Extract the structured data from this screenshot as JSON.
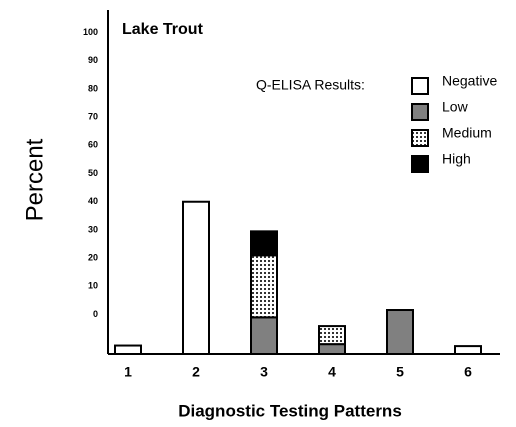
{
  "chart_data": {
    "type": "stacked_bar",
    "title": "Lake Trout",
    "ylabel": "Percent",
    "xlabel": "Diagnostic Testing Patterns",
    "legend_title": "Q-ELISA Results:",
    "categories": [
      "1",
      "2",
      "3",
      "4",
      "5",
      "6"
    ],
    "series": [
      {
        "name": "Negative",
        "color": "#ffffff",
        "values": [
          3,
          54,
          null,
          null,
          null,
          2.8
        ]
      },
      {
        "name": "Low",
        "color": "#808080",
        "values": [
          null,
          null,
          13,
          3.5,
          15.6,
          null
        ]
      },
      {
        "name": "Medium",
        "color": "dots",
        "values": [
          null,
          null,
          22,
          6.4,
          null,
          null
        ]
      },
      {
        "name": "High",
        "color": "#000000",
        "values": [
          null,
          null,
          8.5,
          null,
          null,
          null
        ]
      }
    ],
    "ylim": [
      -14,
      108
    ],
    "yticks": [
      100,
      90,
      80,
      70,
      60,
      50,
      40,
      30,
      20,
      10,
      0
    ],
    "grid": false
  }
}
